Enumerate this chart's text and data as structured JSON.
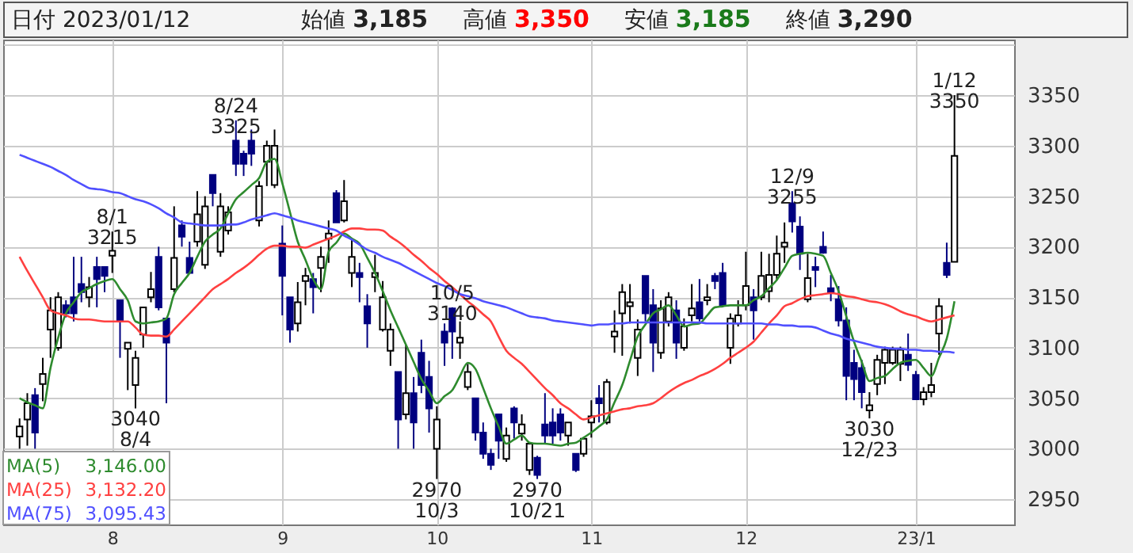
{
  "chart_data": {
    "type": "candlestick",
    "title": "日付 2023/01/12",
    "categories": [
      null,
      null,
      null,
      null,
      null,
      null,
      null,
      null,
      null,
      null,
      null,
      null,
      "8",
      null,
      null,
      null,
      null,
      null,
      null,
      null,
      null,
      null,
      null,
      null,
      null,
      null,
      null,
      null,
      null,
      null,
      null,
      null,
      null,
      null,
      "9",
      null,
      null,
      null,
      null,
      null,
      null,
      null,
      null,
      null,
      null,
      null,
      null,
      null,
      null,
      null,
      null,
      null,
      null,
      null,
      "10",
      null,
      null,
      null,
      null,
      null,
      null,
      null,
      null,
      null,
      null,
      null,
      null,
      null,
      null,
      null,
      null,
      null,
      null,
      null,
      "11",
      null,
      null,
      null,
      null,
      null,
      null,
      null,
      null,
      null,
      null,
      null,
      null,
      null,
      null,
      null,
      null,
      null,
      null,
      null,
      "12",
      null,
      null,
      null,
      null,
      null,
      null,
      null,
      null,
      null,
      null,
      null,
      null,
      null,
      null,
      null,
      null,
      null,
      null,
      null,
      null,
      null,
      "23/1",
      null,
      null,
      null,
      null,
      null
    ],
    "ohlc": [
      [
        3012,
        3030,
        3000,
        3022
      ],
      [
        3029,
        3055,
        3003,
        3045
      ],
      [
        3053,
        3060,
        3000,
        3016
      ],
      [
        3064,
        3090,
        3047,
        3074
      ],
      [
        3118,
        3150,
        3090,
        3137
      ],
      [
        3100,
        3155,
        3097,
        3150
      ],
      [
        3142,
        3147,
        3130,
        3134
      ],
      [
        3150,
        3190,
        3126,
        3134
      ],
      [
        3163,
        3190,
        3145,
        3155
      ],
      [
        3150,
        3170,
        3140,
        3160
      ],
      [
        3180,
        3190,
        3140,
        3168
      ],
      [
        3180,
        3180,
        3155,
        3171
      ],
      [
        3191,
        3215,
        3174,
        3196
      ],
      [
        3147,
        3147,
        3090,
        3126
      ],
      [
        3099,
        3105,
        3058,
        3105
      ],
      [
        3063,
        3097,
        3040,
        3090
      ],
      [
        3113,
        3140,
        3100,
        3140
      ],
      [
        3150,
        3175,
        3145,
        3158
      ],
      [
        3190,
        3200,
        3137,
        3140
      ],
      [
        3129,
        3129,
        3045,
        3105
      ],
      [
        3158,
        3240,
        3155,
        3189
      ],
      [
        3221,
        3226,
        3200,
        3210
      ],
      [
        3189,
        3205,
        3174,
        3174
      ],
      [
        3205,
        3255,
        3200,
        3232
      ],
      [
        3182,
        3250,
        3178,
        3240
      ],
      [
        3271,
        3271,
        3240,
        3253
      ],
      [
        3195,
        3253,
        3190,
        3240
      ],
      [
        3216,
        3240,
        3212,
        3234
      ],
      [
        3305,
        3325,
        3270,
        3282
      ],
      [
        3292,
        3295,
        3270,
        3282
      ],
      [
        3305,
        3316,
        3280,
        3292
      ],
      [
        3226,
        3265,
        3220,
        3260
      ],
      [
        3284,
        3305,
        3260,
        3300
      ],
      [
        3261,
        3316,
        3258,
        3300
      ],
      [
        3203,
        3221,
        3132,
        3171
      ],
      [
        3150,
        3150,
        3105,
        3118
      ],
      [
        3124,
        3165,
        3116,
        3145
      ],
      [
        3166,
        3179,
        3142,
        3171
      ],
      [
        3168,
        3174,
        3134,
        3160
      ],
      [
        3179,
        3200,
        3155,
        3190
      ],
      [
        3208,
        3226,
        3184,
        3213
      ],
      [
        3253,
        3256,
        3224,
        3224
      ],
      [
        3226,
        3266,
        3224,
        3245
      ],
      [
        3174,
        3208,
        3160,
        3190
      ],
      [
        3174,
        3184,
        3145,
        3170
      ],
      [
        3141,
        3153,
        3100,
        3124
      ],
      [
        3170,
        3192,
        3155,
        3174
      ],
      [
        3118,
        3166,
        3116,
        3150
      ],
      [
        3097,
        3124,
        3082,
        3118
      ],
      [
        3076,
        3076,
        3000,
        3029
      ],
      [
        3034,
        3103,
        3029,
        3055
      ],
      [
        3055,
        3071,
        3000,
        3026
      ],
      [
        3095,
        3108,
        3055,
        3063
      ],
      [
        3071,
        3087,
        3016,
        3040
      ],
      [
        3000,
        3042,
        2970,
        3029
      ],
      [
        3116,
        3124,
        3082,
        3105
      ],
      [
        3139,
        3140,
        3089,
        3116
      ],
      [
        3105,
        3126,
        3089,
        3110
      ],
      [
        3061,
        3084,
        3058,
        3076
      ],
      [
        3050,
        3050,
        3008,
        3016
      ],
      [
        3016,
        3026,
        2990,
        2995
      ],
      [
        2995,
        3000,
        2979,
        2984
      ],
      [
        3034,
        3034,
        2990,
        3008
      ],
      [
        2990,
        3021,
        2987,
        3013
      ],
      [
        3040,
        3042,
        3010,
        3026
      ],
      [
        3015,
        3034,
        3008,
        3024
      ],
      [
        2979,
        3005,
        2974,
        3005
      ],
      [
        2991,
        2993,
        2970,
        2974
      ],
      [
        3024,
        3055,
        3005,
        3013
      ],
      [
        3026,
        3040,
        3005,
        3013
      ],
      [
        3034,
        3040,
        3008,
        3016
      ],
      [
        3013,
        3026,
        3003,
        3026
      ],
      [
        2995,
        2995,
        2977,
        2979
      ],
      [
        2995,
        3011,
        2992,
        3010
      ],
      [
        3026,
        3048,
        3011,
        3032
      ],
      [
        3050,
        3063,
        3026,
        3045
      ],
      [
        3026,
        3069,
        3024,
        3066
      ],
      [
        3111,
        3137,
        3095,
        3116
      ],
      [
        3134,
        3163,
        3092,
        3155
      ],
      [
        3141,
        3163,
        3124,
        3145
      ],
      [
        3090,
        3128,
        3072,
        3118
      ],
      [
        3171,
        3171,
        3126,
        3134
      ],
      [
        3142,
        3158,
        3076,
        3105
      ],
      [
        3095,
        3147,
        3089,
        3139
      ],
      [
        3126,
        3155,
        3121,
        3150
      ],
      [
        3137,
        3147,
        3089,
        3105
      ],
      [
        3100,
        3129,
        3097,
        3121
      ],
      [
        3132,
        3163,
        3126,
        3139
      ],
      [
        3145,
        3168,
        3126,
        3129
      ],
      [
        3147,
        3163,
        3142,
        3150
      ],
      [
        3171,
        3174,
        3158,
        3166
      ],
      [
        3174,
        3184,
        3140,
        3142
      ],
      [
        3100,
        3134,
        3084,
        3129
      ],
      [
        3124,
        3147,
        3121,
        3132
      ],
      [
        3142,
        3195,
        3137,
        3161
      ],
      [
        3150,
        3158,
        3108,
        3137
      ],
      [
        3150,
        3195,
        3147,
        3171
      ],
      [
        3156,
        3193,
        3145,
        3172
      ],
      [
        3172,
        3211,
        3167,
        3193
      ],
      [
        3200,
        3224,
        3184,
        3204
      ],
      [
        3243,
        3255,
        3214,
        3225
      ],
      [
        3220,
        3230,
        3177,
        3193
      ],
      [
        3148,
        3193,
        3145,
        3169
      ],
      [
        3180,
        3190,
        3160,
        3177
      ],
      [
        3200,
        3215,
        3193,
        3194
      ],
      [
        3159,
        3172,
        3146,
        3154
      ],
      [
        3148,
        3161,
        3121,
        3127
      ],
      [
        3127,
        3140,
        3048,
        3072
      ],
      [
        3085,
        3098,
        3048,
        3069
      ],
      [
        3080,
        3088,
        3040,
        3056
      ],
      [
        3038,
        3056,
        3030,
        3043
      ],
      [
        3064,
        3093,
        3053,
        3088
      ],
      [
        3085,
        3101,
        3064,
        3098
      ],
      [
        3085,
        3101,
        3083,
        3098
      ],
      [
        3084,
        3101,
        3067,
        3098
      ],
      [
        3093,
        3114,
        3077,
        3083
      ],
      [
        3073,
        3077,
        3049,
        3049
      ],
      [
        3049,
        3061,
        3043,
        3056
      ],
      [
        3056,
        3085,
        3051,
        3063
      ],
      [
        3114,
        3149,
        3093,
        3141
      ],
      [
        3184,
        3204,
        3169,
        3172
      ],
      [
        3185,
        3350,
        3185,
        3290
      ]
    ],
    "series": [
      {
        "type": "line",
        "name": "MA(5)",
        "color": "#2e8b2e",
        "values": [
          3050,
          3046,
          3043,
          3040,
          3080,
          3110,
          3134,
          3145,
          3155,
          3159,
          3163,
          3166,
          3168,
          3158,
          3147,
          3126,
          3124,
          3125,
          3126,
          3129,
          3153,
          3164,
          3174,
          3190,
          3205,
          3212,
          3218,
          3233,
          3247,
          3254,
          3261,
          3268,
          3284,
          3287,
          3263,
          3234,
          3205,
          3187,
          3168,
          3158,
          3195,
          3204,
          3213,
          3208,
          3203,
          3189,
          3174,
          3156,
          3137,
          3120,
          3103,
          3086,
          3069,
          3057,
          3045,
          3052,
          3058,
          3072,
          3085,
          3079,
          3060,
          3040,
          3022,
          3005,
          3009,
          3013,
          3006,
          3005,
          3005,
          3004,
          3003,
          3005,
          3006,
          3011,
          3016,
          3022,
          3029,
          3046,
          3063,
          3087,
          3111,
          3123,
          3134,
          3138,
          3142,
          3132,
          3121,
          3123,
          3124,
          3132,
          3140,
          3141,
          3142,
          3142,
          3142,
          3147,
          3151,
          3159,
          3167,
          3179,
          3191,
          3193,
          3194,
          3193,
          3191,
          3174,
          3156,
          3131,
          3106,
          3086,
          3067,
          3070,
          3072,
          3079,
          3085,
          3087,
          3088,
          3080,
          3072,
          3090,
          3109,
          3146
        ]
      },
      {
        "type": "line",
        "name": "MA(25)",
        "color": "#ff4040",
        "values": [
          3190,
          3176,
          3163,
          3150,
          3137,
          3134,
          3132,
          3129,
          3128,
          3128,
          3127,
          3126,
          3126,
          3126,
          3126,
          3120,
          3113,
          3112,
          3112,
          3111,
          3118,
          3126,
          3134,
          3142,
          3150,
          3158,
          3163,
          3168,
          3174,
          3179,
          3185,
          3192,
          3198,
          3201,
          3201,
          3200,
          3200,
          3199,
          3202,
          3205,
          3208,
          3211,
          3215,
          3218,
          3218,
          3217,
          3217,
          3216,
          3210,
          3205,
          3199,
          3192,
          3186,
          3179,
          3173,
          3166,
          3160,
          3153,
          3146,
          3140,
          3133,
          3126,
          3111,
          3097,
          3090,
          3084,
          3076,
          3068,
          3060,
          3053,
          3045,
          3040,
          3034,
          3029,
          3031,
          3033,
          3035,
          3037,
          3039,
          3040,
          3042,
          3043,
          3045,
          3050,
          3056,
          3061,
          3065,
          3068,
          3072,
          3075,
          3079,
          3084,
          3090,
          3095,
          3100,
          3106,
          3115,
          3124,
          3132,
          3141,
          3144,
          3148,
          3151,
          3152,
          3153,
          3154,
          3153,
          3151,
          3150,
          3148,
          3146,
          3145,
          3143,
          3140,
          3136,
          3133,
          3131,
          3128,
          3126,
          3128,
          3130,
          3132
        ]
      },
      {
        "type": "line",
        "name": "MA(75)",
        "color": "#5050ff",
        "values": [
          3291,
          3288,
          3285,
          3282,
          3279,
          3275,
          3271,
          3266,
          3262,
          3258,
          3257,
          3256,
          3254,
          3253,
          3250,
          3247,
          3245,
          3242,
          3238,
          3233,
          3229,
          3224,
          3223,
          3222,
          3221,
          3221,
          3221,
          3222,
          3222,
          3224,
          3227,
          3229,
          3231,
          3233,
          3231,
          3229,
          3226,
          3224,
          3222,
          3220,
          3218,
          3216,
          3211,
          3207,
          3202,
          3197,
          3194,
          3190,
          3187,
          3184,
          3180,
          3176,
          3172,
          3168,
          3164,
          3161,
          3157,
          3153,
          3151,
          3149,
          3146,
          3144,
          3142,
          3140,
          3137,
          3134,
          3131,
          3130,
          3129,
          3127,
          3126,
          3125,
          3124,
          3123,
          3122,
          3123,
          3123,
          3124,
          3124,
          3125,
          3125,
          3125,
          3125,
          3125,
          3125,
          3125,
          3125,
          3125,
          3125,
          3124,
          3124,
          3124,
          3124,
          3124,
          3124,
          3124,
          3124,
          3123,
          3123,
          3122,
          3122,
          3121,
          3121,
          3120,
          3117,
          3114,
          3112,
          3109,
          3107,
          3105,
          3103,
          3101,
          3100,
          3099,
          3099,
          3098,
          3098,
          3097,
          3097,
          3096,
          3096,
          3095
        ]
      }
    ],
    "ylim": [
      2925,
      3405
    ],
    "yticks": [
      2950,
      3000,
      3050,
      3100,
      3150,
      3200,
      3250,
      3300,
      3350,
      {
        "value": 3400,
        "label": null
      }
    ],
    "grid": true,
    "legend": "bottom left",
    "annotations": [
      "始値 3,185",
      "高値 3,350",
      "安値 3,185",
      "終値 3,290",
      "3,146.00",
      "3,132.20",
      "3,095.43",
      {
        "text": "8/1\n3215",
        "y": 3215
      },
      {
        "text": "3040\n8/4",
        "y": 3040
      },
      {
        "text": "8/24\n3325",
        "y": 3325
      },
      {
        "text": "2970\n10/3",
        "y": 2970
      },
      {
        "text": "10/5\n3140",
        "y": 3140
      },
      {
        "text": "2970\n10/21",
        "y": 2970
      },
      {
        "text": "12/9\n3255",
        "y": 3255
      },
      {
        "text": "3030\n12/23",
        "y": 3030
      },
      {
        "text": "1/12\n3350",
        "y": 3350
      }
    ]
  }
}
